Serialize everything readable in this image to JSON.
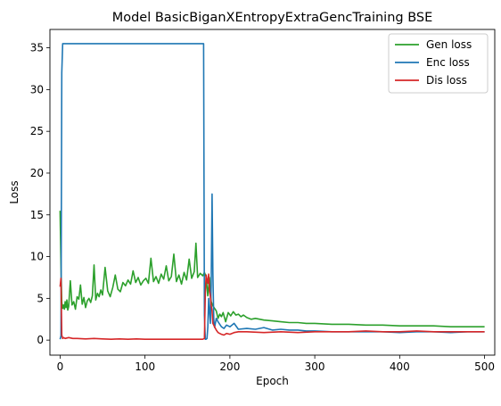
{
  "chart_data": {
    "type": "line",
    "title": "Model BasicBiganXEntropyExtraGencTraining BSE",
    "xlabel": "Epoch",
    "ylabel": "Loss",
    "xlim": [
      -12,
      512
    ],
    "ylim": [
      -1.8,
      37.2
    ],
    "xticks": [
      0,
      100,
      200,
      300,
      400,
      500
    ],
    "yticks": [
      0,
      5,
      10,
      15,
      20,
      25,
      30,
      35
    ],
    "grid": false,
    "legend_position": "top-right",
    "series": [
      {
        "name": "Gen loss",
        "color": "#2ca02c",
        "x": [
          0,
          1,
          2,
          3,
          4,
          5,
          6,
          7,
          8,
          9,
          10,
          12,
          14,
          16,
          18,
          20,
          22,
          24,
          26,
          28,
          30,
          32,
          34,
          36,
          38,
          40,
          42,
          44,
          46,
          48,
          50,
          53,
          56,
          59,
          62,
          65,
          68,
          71,
          74,
          77,
          80,
          83,
          86,
          89,
          92,
          95,
          98,
          101,
          104,
          107,
          110,
          113,
          116,
          119,
          122,
          125,
          128,
          131,
          134,
          137,
          140,
          143,
          146,
          149,
          152,
          155,
          158,
          160,
          162,
          165,
          168,
          170,
          172,
          174,
          176,
          178,
          180,
          182,
          184,
          186,
          188,
          190,
          192,
          195,
          198,
          201,
          204,
          207,
          210,
          213,
          216,
          220,
          225,
          230,
          240,
          250,
          260,
          270,
          280,
          290,
          300,
          320,
          340,
          360,
          380,
          400,
          420,
          440,
          460,
          480,
          500
        ],
        "y": [
          15.5,
          9.0,
          4.5,
          3.8,
          4.2,
          3.7,
          4.6,
          3.9,
          4.8,
          3.6,
          4.0,
          7.1,
          4.2,
          4.6,
          3.7,
          5.2,
          4.9,
          6.6,
          4.3,
          5.1,
          3.9,
          4.7,
          5.0,
          4.5,
          5.3,
          9.0,
          4.8,
          5.6,
          5.2,
          6.0,
          5.4,
          8.7,
          5.9,
          5.2,
          6.3,
          7.8,
          6.1,
          5.8,
          6.9,
          6.5,
          7.2,
          6.7,
          8.3,
          6.9,
          7.5,
          6.6,
          7.1,
          7.4,
          6.8,
          9.8,
          7.0,
          7.6,
          6.8,
          7.9,
          7.3,
          8.9,
          7.1,
          7.6,
          10.3,
          7.0,
          7.8,
          6.7,
          8.1,
          7.2,
          9.7,
          7.4,
          8.2,
          11.6,
          7.5,
          8.0,
          7.7,
          8.1,
          7.6,
          5.3,
          7.5,
          4.6,
          4.1,
          3.8,
          3.5,
          2.6,
          3.1,
          2.8,
          3.3,
          2.2,
          3.3,
          2.9,
          3.4,
          3.0,
          3.1,
          2.8,
          3.0,
          2.7,
          2.5,
          2.6,
          2.4,
          2.3,
          2.2,
          2.1,
          2.1,
          2.0,
          2.0,
          1.9,
          1.9,
          1.8,
          1.8,
          1.7,
          1.7,
          1.7,
          1.6,
          1.6,
          1.6
        ]
      },
      {
        "name": "Enc loss",
        "color": "#1f77b4",
        "x": [
          0,
          1,
          2,
          3,
          4,
          100,
          168,
          169,
          170,
          171,
          172,
          173,
          174,
          175,
          176,
          177,
          178,
          179,
          180,
          181,
          182,
          184,
          186,
          188,
          190,
          193,
          196,
          200,
          205,
          210,
          220,
          230,
          240,
          250,
          260,
          270,
          280,
          290,
          300,
          320,
          340,
          360,
          380,
          400,
          420,
          440,
          460,
          480,
          500
        ],
        "y": [
          0.1,
          0.5,
          32.0,
          35.5,
          35.5,
          35.5,
          35.5,
          35.5,
          3.0,
          0.1,
          0.1,
          0.2,
          1.5,
          5.0,
          3.5,
          2.0,
          6.5,
          17.5,
          8.0,
          2.5,
          1.5,
          2.6,
          2.2,
          1.9,
          1.6,
          1.4,
          1.8,
          1.6,
          2.0,
          1.3,
          1.4,
          1.3,
          1.5,
          1.2,
          1.3,
          1.2,
          1.2,
          1.1,
          1.1,
          1.0,
          1.0,
          1.0,
          1.0,
          0.9,
          1.0,
          1.0,
          0.9,
          1.0,
          1.0
        ]
      },
      {
        "name": "Dis loss",
        "color": "#d62728",
        "x": [
          0,
          1,
          2,
          3,
          4,
          6,
          10,
          15,
          20,
          30,
          40,
          50,
          60,
          70,
          80,
          90,
          100,
          110,
          120,
          130,
          140,
          150,
          160,
          168,
          170,
          171,
          172,
          173,
          174,
          175,
          176,
          177,
          178,
          179,
          180,
          182,
          184,
          186,
          188,
          190,
          193,
          196,
          200,
          205,
          210,
          220,
          240,
          260,
          280,
          300,
          320,
          340,
          360,
          380,
          400,
          420,
          440,
          460,
          480,
          500
        ],
        "y": [
          6.4,
          7.4,
          0.6,
          0.2,
          0.3,
          0.2,
          0.3,
          0.2,
          0.2,
          0.15,
          0.2,
          0.15,
          0.1,
          0.15,
          0.1,
          0.15,
          0.1,
          0.1,
          0.1,
          0.1,
          0.1,
          0.1,
          0.1,
          0.1,
          0.2,
          5.5,
          7.8,
          7.2,
          6.8,
          7.9,
          6.0,
          5.2,
          4.2,
          3.5,
          2.0,
          1.6,
          1.2,
          0.9,
          0.8,
          0.7,
          0.6,
          0.8,
          0.7,
          0.9,
          1.0,
          1.0,
          0.9,
          1.0,
          0.9,
          1.0,
          1.0,
          1.0,
          1.1,
          1.0,
          1.0,
          1.1,
          1.0,
          1.0,
          1.0,
          1.0
        ]
      }
    ]
  }
}
